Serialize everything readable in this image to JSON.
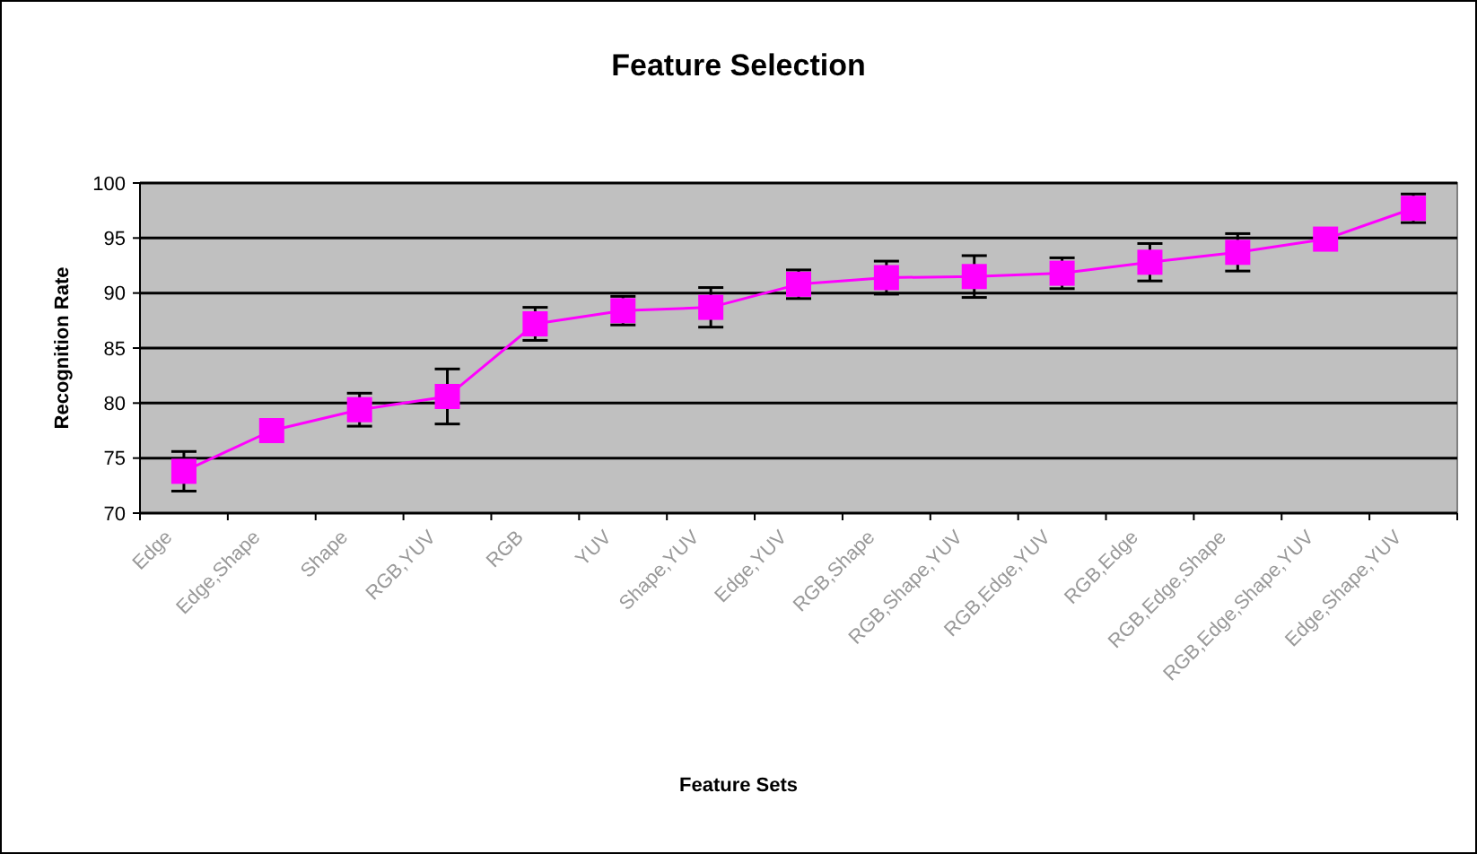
{
  "chart_data": {
    "type": "line",
    "title": "Feature Selection",
    "xlabel": "Feature Sets",
    "ylabel": "Recognition Rate",
    "categories": [
      "Edge",
      "Edge,Shape",
      "Shape",
      "RGB,YUV",
      "RGB",
      "YUV",
      "Shape,YUV",
      "Edge,YUV",
      "RGB,Shape",
      "RGB,Shape,YUV",
      "RGB,Edge,YUV",
      "RGB,Edge",
      "RGB,Edge,Shape",
      "RGB,Edge,Shape,YUV",
      "Edge,Shape,YUV"
    ],
    "series": [
      {
        "color": "#ff00ff",
        "values": [
          73.8,
          77.5,
          79.4,
          80.6,
          87.2,
          88.4,
          88.7,
          90.8,
          91.4,
          91.5,
          91.8,
          92.8,
          93.7,
          94.9,
          97.7
        ],
        "errors": [
          1.8,
          null,
          1.5,
          2.5,
          1.5,
          1.3,
          1.8,
          1.3,
          1.5,
          1.9,
          1.4,
          1.7,
          1.7,
          null,
          1.3
        ]
      }
    ],
    "ylim": [
      70,
      100
    ],
    "yticks": [
      70,
      75,
      80,
      85,
      90,
      95,
      100
    ],
    "grid": "y",
    "marker": "square",
    "line_style": "solid"
  }
}
